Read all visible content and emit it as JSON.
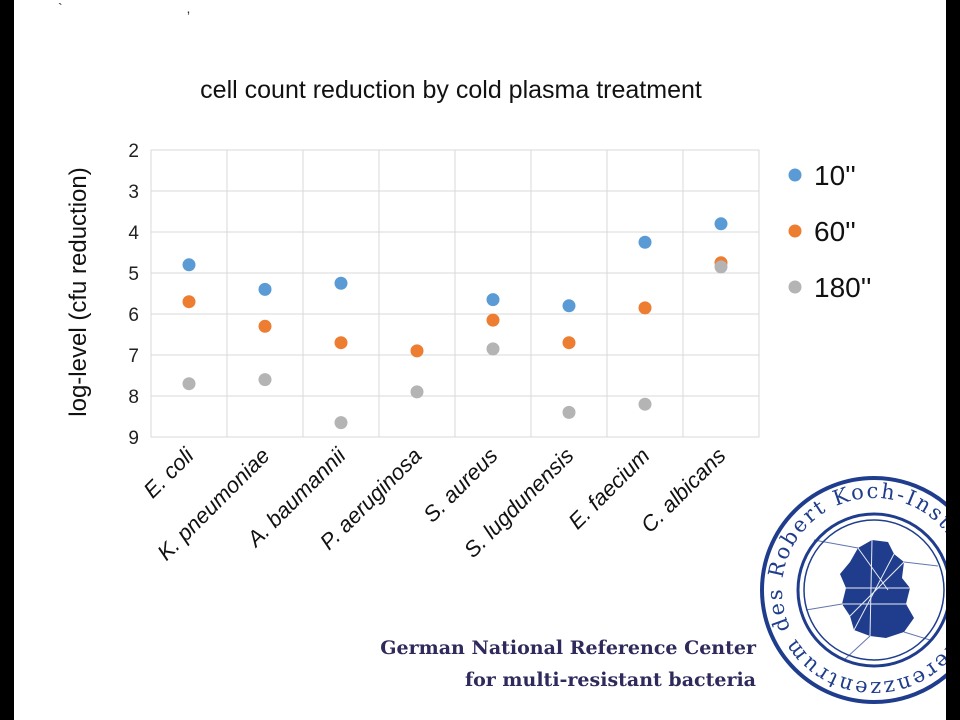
{
  "chart_data": {
    "type": "scatter",
    "title": "cell count reduction by cold plasma treatment",
    "ylabel": "log-level (cfu reduction)",
    "xlabel": "",
    "categories": [
      "E. coli",
      "K. pneumoniae",
      "A. baumannii",
      "P. aeruginosa",
      "S. aureus",
      "S. lugdunensis",
      "E. faecium",
      "C. albicans"
    ],
    "yticks": [
      "2",
      "3",
      "4",
      "5",
      "6",
      "7",
      "8",
      "9"
    ],
    "ylim": [
      2,
      9
    ],
    "y_inverted": true,
    "grid": true,
    "legend_position": "right",
    "series": [
      {
        "name": "10''",
        "color": "#5b9bd5",
        "values": [
          4.8,
          5.4,
          5.25,
          null,
          5.65,
          5.8,
          4.25,
          3.8
        ]
      },
      {
        "name": "60''",
        "color": "#ed7d31",
        "values": [
          5.7,
          6.3,
          6.7,
          6.9,
          6.15,
          6.7,
          5.85,
          4.75
        ]
      },
      {
        "name": "180''",
        "color": "#b4b4b4",
        "values": [
          7.7,
          7.6,
          8.65,
          7.9,
          6.85,
          8.4,
          8.2,
          4.85
        ]
      }
    ]
  },
  "footer": {
    "line1": "German National Reference Center",
    "line2": "for multi-resistant bacteria"
  },
  "seal": {
    "text": "Robert Koch-Instituts • Referenzzentrum des",
    "color": "#1f3d8c"
  }
}
